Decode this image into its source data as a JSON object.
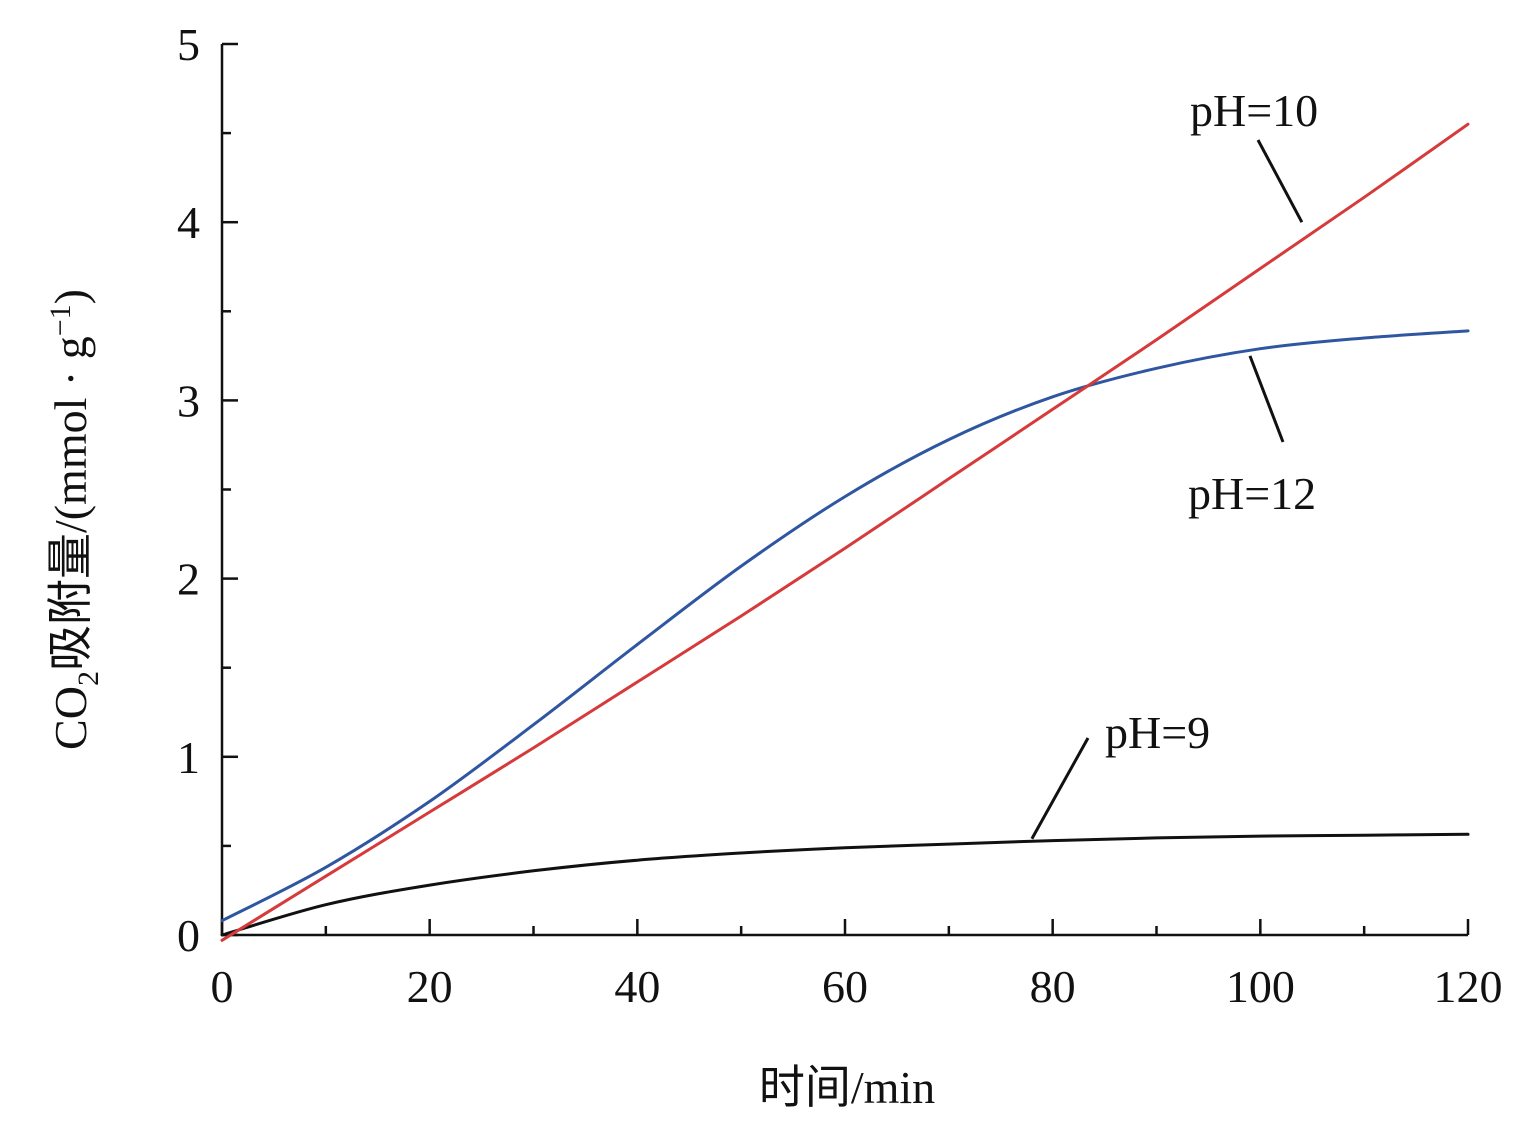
{
  "chart_data": {
    "type": "line",
    "title": "",
    "xlabel": "时间/min",
    "ylabel": {
      "prefix": "CO",
      "subscript": "2",
      "main": "吸附量/(mmol · g",
      "superscript": "−1",
      "suffix": ")"
    },
    "xlim": [
      0,
      120
    ],
    "ylim": [
      0,
      5
    ],
    "x_ticks": [
      0,
      20,
      40,
      60,
      80,
      100,
      120
    ],
    "y_ticks": [
      0,
      1,
      2,
      3,
      4,
      5
    ],
    "x_minor_step": 10,
    "y_minor_step": 0.5,
    "grid": false,
    "legend": "inline annotations with leader lines",
    "series": [
      {
        "name": "pH=10",
        "label": "pH=10",
        "color": "#d63a3a",
        "x": [
          0,
          10,
          20,
          30,
          40,
          50,
          60,
          70,
          80,
          90,
          100,
          110,
          120
        ],
        "y": [
          -0.03,
          0.33,
          0.69,
          1.05,
          1.42,
          1.79,
          2.17,
          2.56,
          2.95,
          3.34,
          3.74,
          4.14,
          4.55
        ],
        "label_anchor": {
          "x": 104,
          "y": 4.0
        }
      },
      {
        "name": "pH=12",
        "label": "pH=12",
        "color": "#2f56a0",
        "x": [
          0,
          10,
          20,
          30,
          40,
          50,
          60,
          70,
          80,
          90,
          100,
          110,
          120
        ],
        "y": [
          0.08,
          0.38,
          0.75,
          1.18,
          1.63,
          2.07,
          2.46,
          2.78,
          3.02,
          3.18,
          3.29,
          3.35,
          3.39
        ],
        "label_anchor": {
          "x": 99,
          "y": 3.25
        }
      },
      {
        "name": "pH=9",
        "label": "pH=9",
        "color": "#111111",
        "x": [
          0,
          10,
          20,
          30,
          40,
          50,
          60,
          70,
          80,
          90,
          100,
          110,
          120
        ],
        "y": [
          0.0,
          0.17,
          0.28,
          0.36,
          0.42,
          0.46,
          0.49,
          0.51,
          0.53,
          0.545,
          0.555,
          0.56,
          0.565
        ],
        "label_anchor": {
          "x": 78,
          "y": 0.54
        }
      }
    ]
  }
}
